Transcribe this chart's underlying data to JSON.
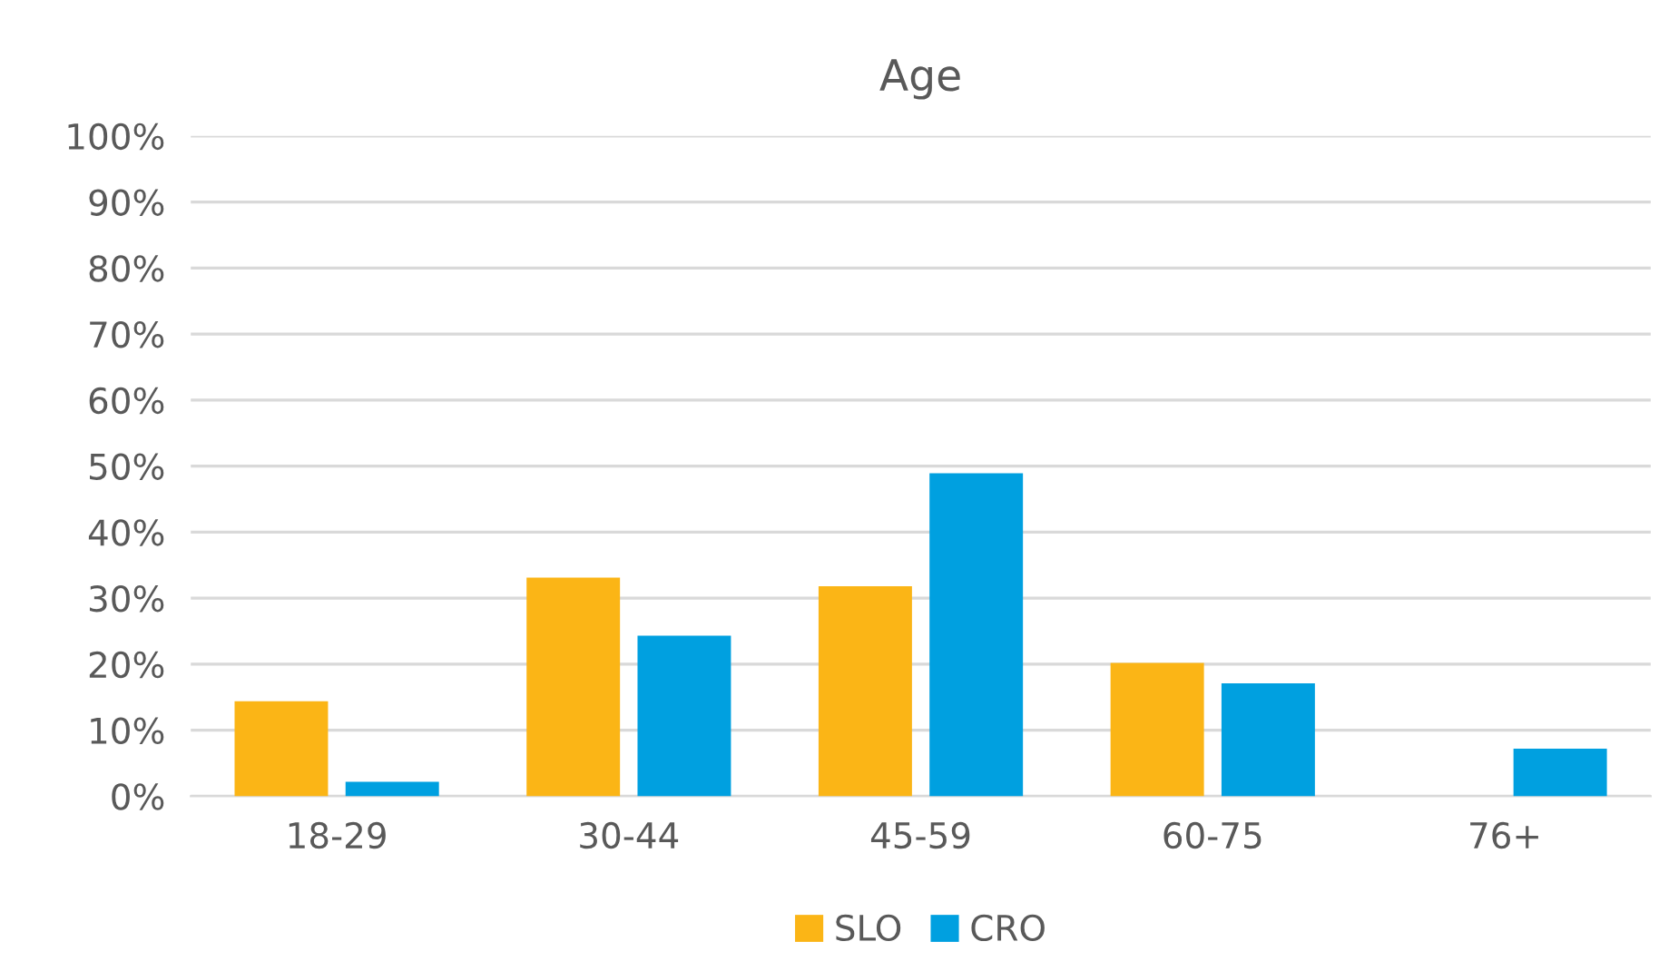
{
  "chart_data": {
    "type": "bar",
    "title": "Age",
    "categories": [
      "18-29",
      "30-44",
      "45-59",
      "60-75",
      "76+"
    ],
    "series": [
      {
        "name": "SLO",
        "color": "#fbb516",
        "values": [
          14.4,
          33.1,
          31.8,
          20.2,
          0
        ]
      },
      {
        "name": "CRO",
        "color": "#00a0e0",
        "values": [
          2.2,
          24.3,
          48.9,
          17.1,
          7.2
        ]
      }
    ],
    "ylim": [
      0,
      100
    ],
    "yticks": [
      {
        "value": 0,
        "label": "0%"
      },
      {
        "value": 10,
        "label": "10%"
      },
      {
        "value": 20,
        "label": "20%"
      },
      {
        "value": 30,
        "label": "30%"
      },
      {
        "value": 40,
        "label": "40%"
      },
      {
        "value": 50,
        "label": "50%"
      },
      {
        "value": 60,
        "label": "60%"
      },
      {
        "value": 70,
        "label": "70%"
      },
      {
        "value": 80,
        "label": "80%"
      },
      {
        "value": 90,
        "label": "90%"
      },
      {
        "value": 100,
        "label": "100%"
      }
    ],
    "grid": "y",
    "legend": "bottom"
  }
}
